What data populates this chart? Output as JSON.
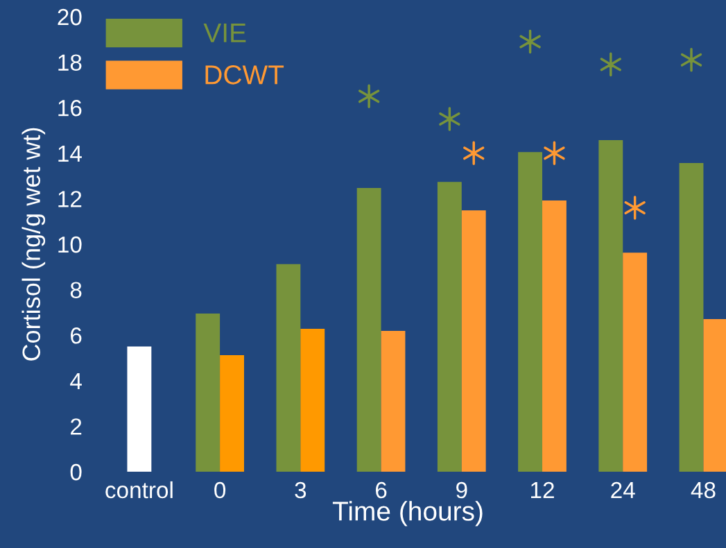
{
  "chart_data": {
    "type": "bar",
    "xlabel": "Time (hours)",
    "ylabel": "Cortisol (ng/g wet wt)",
    "categories": [
      "control",
      "0",
      "3",
      "6",
      "9",
      "12",
      "24",
      "48"
    ],
    "series": [
      {
        "color": "#ffffff",
        "values": [
          5.5,
          null,
          null,
          null,
          null,
          null,
          null,
          null
        ]
      },
      {
        "name": "VIE",
        "color": "#77933c",
        "values": [
          null,
          6.95,
          9.12,
          12.47,
          12.74,
          14.05,
          14.57,
          13.57
        ]
      },
      {
        "name": "DCWT",
        "color": "#ff9933",
        "colors": [
          null,
          "#ff9900",
          "#ff9900",
          "#ff9933",
          "#ff9933",
          "#ff9933",
          "#ff9933",
          "#ff9933"
        ],
        "values": [
          null,
          5.12,
          6.28,
          6.19,
          11.49,
          11.92,
          9.63,
          6.71
        ]
      },
      {
        "type": "scatter",
        "marker": "cross",
        "color": "#77933c",
        "x": [
          "6",
          "9",
          "12",
          "24",
          "48"
        ],
        "values": [
          16.5,
          15.5,
          18.9,
          17.9,
          18.1
        ]
      },
      {
        "type": "scatter",
        "marker": "cross",
        "color": "#ff9933",
        "x": [
          "9",
          "12",
          "24"
        ],
        "values": [
          14.0,
          14.0,
          11.6
        ]
      }
    ],
    "ylim": [
      0,
      20
    ],
    "yticks": [
      0,
      2,
      4,
      6,
      8,
      10,
      12,
      14,
      16,
      18,
      20
    ],
    "legend": "top left",
    "grid": false
  }
}
